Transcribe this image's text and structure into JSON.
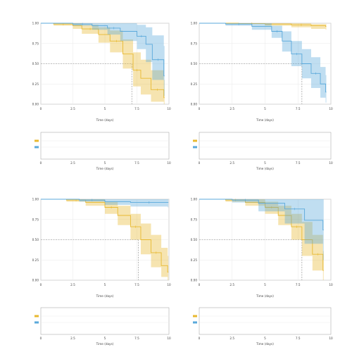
{
  "colors": {
    "group1": "#e8b930",
    "group2": "#5aa9db",
    "panel_bg": "#ffffff",
    "grid": "#e9e9e9",
    "axis": "#9a9a9a",
    "median_line": "#8a8a8a"
  },
  "chart_data": [
    {
      "type": "line",
      "title": "",
      "legend_labels": [
        "",
        ""
      ],
      "xlabel": "Time (days)",
      "ylabel": "",
      "xlim": [
        0,
        10
      ],
      "ylim": [
        0,
        1
      ],
      "xticks": [
        "0",
        "2.5",
        "5",
        "7.5",
        "10"
      ],
      "yticks": [
        "0.00",
        "0.25",
        "0.50",
        "0.75",
        "1.00"
      ],
      "p_value": "",
      "series": [
        {
          "name": "",
          "color": "#e8b930",
          "x": [
            0,
            1,
            2.5,
            3.2,
            4.5,
            5.4,
            6.4,
            7.2,
            7.8,
            8.6,
            9.6
          ],
          "y": [
            1.0,
            0.99,
            0.97,
            0.93,
            0.86,
            0.78,
            0.62,
            0.42,
            0.32,
            0.18,
            0.08
          ],
          "lower": [
            1.0,
            0.97,
            0.93,
            0.87,
            0.76,
            0.64,
            0.44,
            0.22,
            0.12,
            0.03,
            0.0
          ],
          "upper": [
            1.0,
            1.0,
            1.0,
            0.98,
            0.95,
            0.91,
            0.8,
            0.64,
            0.55,
            0.42,
            0.3
          ]
        },
        {
          "name": "",
          "color": "#5aa9db",
          "x": [
            0,
            2.5,
            4,
            5.2,
            6.2,
            7.5,
            8.2,
            8.7,
            9.6
          ],
          "y": [
            1.0,
            0.99,
            0.97,
            0.94,
            0.9,
            0.84,
            0.74,
            0.55,
            0.35
          ],
          "lower": [
            1.0,
            0.97,
            0.92,
            0.86,
            0.78,
            0.68,
            0.52,
            0.3,
            0.1
          ],
          "upper": [
            1.0,
            1.0,
            1.0,
            1.0,
            1.0,
            0.98,
            0.95,
            0.85,
            0.72
          ]
        }
      ],
      "median_x": 7.1,
      "risk_table": {
        "title": "",
        "ylabel": "",
        "rows": [
          [
            "",
            "",
            "",
            "",
            ""
          ],
          [
            "",
            "",
            "",
            "",
            ""
          ]
        ]
      }
    },
    {
      "type": "line",
      "title": "",
      "legend_labels": [
        "",
        ""
      ],
      "xlabel": "Time (days)",
      "ylabel": "",
      "xlim": [
        0,
        10
      ],
      "ylim": [
        0,
        1
      ],
      "xticks": [
        "0",
        "2.5",
        "5",
        "7.5",
        "10"
      ],
      "yticks": [
        "0.00",
        "0.25",
        "0.50",
        "0.75",
        "1.00"
      ],
      "p_value": "",
      "series": [
        {
          "name": "",
          "color": "#e8b930",
          "x": [
            0,
            3,
            5,
            7,
            8.5,
            9.6
          ],
          "y": [
            1.0,
            0.995,
            0.99,
            0.98,
            0.97,
            0.96
          ],
          "lower": [
            1.0,
            0.99,
            0.97,
            0.95,
            0.93,
            0.92
          ],
          "upper": [
            1.0,
            1.0,
            1.0,
            1.0,
            0.99,
            0.99
          ]
        },
        {
          "name": "",
          "color": "#5aa9db",
          "x": [
            0,
            2,
            4,
            5.5,
            6.3,
            7.0,
            7.8,
            8.5,
            9.2,
            9.6
          ],
          "y": [
            1.0,
            0.99,
            0.96,
            0.9,
            0.78,
            0.62,
            0.5,
            0.38,
            0.25,
            0.15
          ],
          "lower": [
            1.0,
            0.97,
            0.92,
            0.82,
            0.65,
            0.47,
            0.32,
            0.2,
            0.08,
            0.02
          ],
          "upper": [
            1.0,
            1.0,
            1.0,
            0.97,
            0.9,
            0.78,
            0.68,
            0.58,
            0.46,
            0.36
          ]
        }
      ],
      "median_x": 7.8,
      "risk_table": {
        "title": "",
        "ylabel": "",
        "rows": [
          [
            "",
            "",
            "",
            "",
            ""
          ],
          [
            "",
            "",
            "",
            "",
            ""
          ]
        ]
      }
    },
    {
      "type": "line",
      "title": "",
      "legend_labels": [
        "",
        ""
      ],
      "xlabel": "Time (days)",
      "ylabel": "",
      "xlim": [
        0,
        10
      ],
      "ylim": [
        0,
        1
      ],
      "xticks": [
        "0",
        "2.5",
        "5",
        "7.5",
        "10"
      ],
      "yticks": [
        "0.00",
        "0.25",
        "0.50",
        "0.75",
        "1.00"
      ],
      "p_value": "",
      "series": [
        {
          "name": "",
          "color": "#e8b930",
          "x": [
            0,
            2,
            3.5,
            5,
            6,
            7,
            7.8,
            8.6,
            9.4,
            9.9
          ],
          "y": [
            1.0,
            0.99,
            0.96,
            0.9,
            0.8,
            0.66,
            0.5,
            0.34,
            0.18,
            0.1
          ],
          "lower": [
            1.0,
            0.97,
            0.92,
            0.82,
            0.68,
            0.5,
            0.32,
            0.16,
            0.04,
            0.0
          ],
          "upper": [
            1.0,
            1.0,
            1.0,
            0.97,
            0.92,
            0.82,
            0.7,
            0.56,
            0.4,
            0.3
          ]
        },
        {
          "name": "",
          "color": "#5aa9db",
          "x": [
            0,
            3,
            5,
            7,
            9.9
          ],
          "y": [
            1.0,
            0.99,
            0.97,
            0.96,
            0.96
          ],
          "lower": [
            1.0,
            0.97,
            0.93,
            0.91,
            0.9
          ],
          "upper": [
            1.0,
            1.0,
            1.0,
            1.0,
            1.0
          ]
        }
      ],
      "median_x": 7.6,
      "risk_table": {
        "title": "",
        "ylabel": "",
        "rows": [
          [
            "",
            "",
            "",
            "",
            ""
          ],
          [
            "",
            "",
            "",
            "",
            ""
          ]
        ]
      }
    },
    {
      "type": "line",
      "title": "",
      "legend_labels": [
        "",
        ""
      ],
      "xlabel": "Time (days)",
      "ylabel": "",
      "xlim": [
        0,
        10
      ],
      "ylim": [
        0,
        1
      ],
      "xticks": [
        "0",
        "2.5",
        "5",
        "7.5",
        "10"
      ],
      "yticks": [
        "0.00",
        "0.25",
        "0.50",
        "0.75",
        "1.00"
      ],
      "p_value": "",
      "series": [
        {
          "name": "",
          "color": "#e8b930",
          "x": [
            0,
            2,
            3.5,
            5,
            6,
            7,
            7.8,
            8.6,
            9.4
          ],
          "y": [
            1.0,
            0.99,
            0.96,
            0.9,
            0.8,
            0.66,
            0.5,
            0.32,
            0.12
          ],
          "lower": [
            1.0,
            0.97,
            0.92,
            0.82,
            0.68,
            0.5,
            0.3,
            0.12,
            0.0
          ],
          "upper": [
            1.0,
            1.0,
            1.0,
            0.97,
            0.92,
            0.82,
            0.72,
            0.56,
            0.36
          ]
        },
        {
          "name": "",
          "color": "#5aa9db",
          "x": [
            0,
            2.5,
            4.5,
            6.5,
            8,
            9.4
          ],
          "y": [
            1.0,
            0.99,
            0.95,
            0.88,
            0.74,
            0.62
          ],
          "lower": [
            1.0,
            0.96,
            0.85,
            0.7,
            0.45,
            0.25
          ],
          "upper": [
            1.0,
            1.0,
            1.0,
            1.0,
            1.0,
            1.0
          ]
        }
      ],
      "median_x": 7.8,
      "risk_table": {
        "title": "",
        "ylabel": "",
        "rows": [
          [
            "",
            "",
            "",
            "",
            ""
          ],
          [
            "",
            "",
            "",
            "",
            ""
          ]
        ]
      }
    }
  ]
}
